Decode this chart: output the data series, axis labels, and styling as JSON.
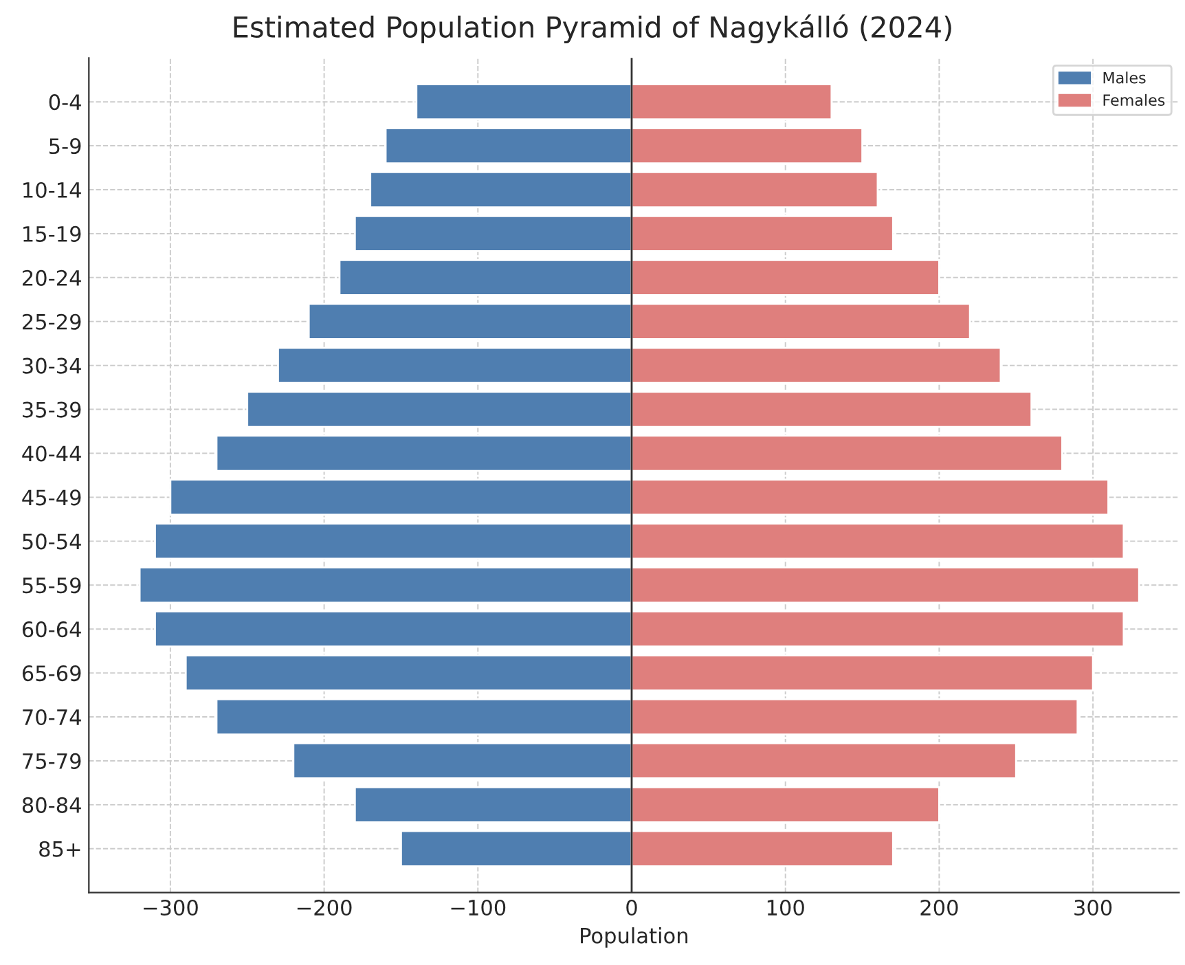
{
  "chart_data": {
    "type": "bar",
    "stacked": true,
    "orientation": "horizontal",
    "title": "Estimated Population Pyramid of Nagykálló (2024)",
    "xlabel": "Population",
    "categories": [
      "0-4",
      "5-9",
      "10-14",
      "15-19",
      "20-24",
      "25-29",
      "30-34",
      "35-39",
      "40-44",
      "45-49",
      "50-54",
      "55-59",
      "60-64",
      "65-69",
      "70-74",
      "75-79",
      "80-84",
      "85+"
    ],
    "series": [
      {
        "name": "Males",
        "color": "#4f7eb0",
        "values": [
          -140,
          -160,
          -170,
          -180,
          -190,
          -210,
          -230,
          -250,
          -270,
          -300,
          -310,
          -320,
          -310,
          -290,
          -270,
          -220,
          -180,
          -150
        ]
      },
      {
        "name": "Females",
        "color": "#df7f7d",
        "values": [
          130,
          150,
          160,
          170,
          200,
          220,
          240,
          260,
          280,
          310,
          320,
          330,
          320,
          300,
          290,
          250,
          200,
          170
        ]
      }
    ],
    "xlim": [
      -353,
      356
    ],
    "xticks": [
      {
        "value": -300,
        "label": "−300"
      },
      {
        "value": -200,
        "label": "−200"
      },
      {
        "value": -100,
        "label": "−100"
      },
      0,
      100,
      200,
      300
    ],
    "ref_lines": [
      {
        "axis": "x",
        "value": 0,
        "color": "#333333"
      }
    ],
    "grid": true,
    "legend": "top right"
  }
}
